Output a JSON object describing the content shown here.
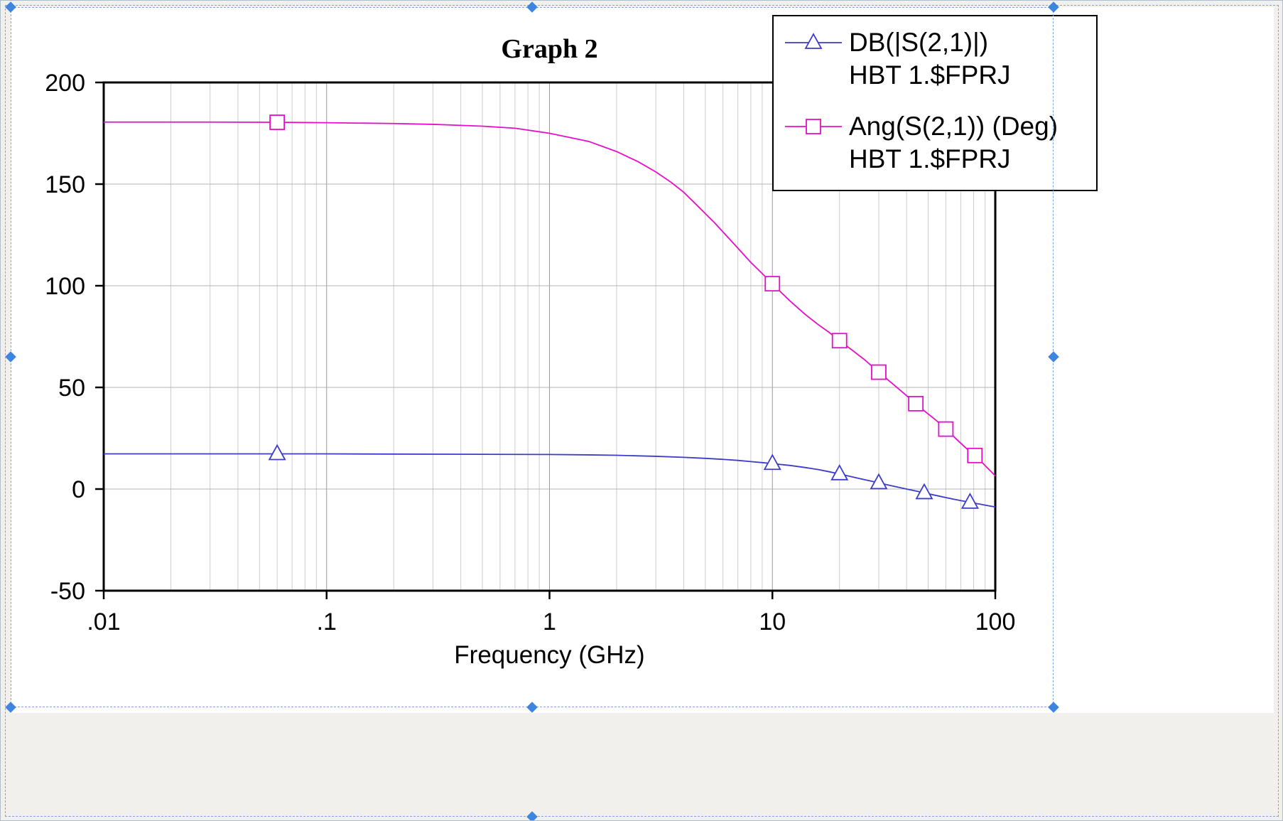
{
  "window": {
    "page_background": "#f1f0ed",
    "graph_background": "#ffffff"
  },
  "selection": {
    "handle_color": "#3d85e0",
    "outline_color": "#7aa7dd"
  },
  "chart_data": {
    "type": "line",
    "title": "Graph 2",
    "xlabel": "Frequency (GHz)",
    "x_scale": "log",
    "xlim": [
      0.01,
      100
    ],
    "xticks": [
      {
        "value": 0.01,
        "label": ".01"
      },
      {
        "value": 0.1,
        "label": ".1"
      },
      {
        "value": 1,
        "label": "1"
      },
      {
        "value": 10,
        "label": "10"
      },
      {
        "value": 100,
        "label": "100"
      }
    ],
    "ylim": [
      -50,
      200
    ],
    "yticks": [
      -50,
      0,
      50,
      100,
      150,
      200
    ],
    "grid": true,
    "grid_minor_color": "#cccccc",
    "grid_major_color": "#9a9a9a",
    "grid_horizontal_color": "#b3b3b3",
    "frame_color": "#000000",
    "legend_position": "top-right",
    "series": [
      {
        "name": "DB(|S(2,1)|)",
        "sublabel": "HBT 1.$FPRJ",
        "color": "#3c3cc8",
        "marker": "triangle",
        "points": [
          [
            0.01,
            17.3
          ],
          [
            0.02,
            17.3
          ],
          [
            0.05,
            17.3
          ],
          [
            0.1,
            17.3
          ],
          [
            0.2,
            17.2
          ],
          [
            0.5,
            17.1
          ],
          [
            1,
            17.0
          ],
          [
            1.5,
            16.8
          ],
          [
            2,
            16.6
          ],
          [
            3,
            16.1
          ],
          [
            4,
            15.6
          ],
          [
            5,
            15.1
          ],
          [
            6,
            14.6
          ],
          [
            7,
            14.1
          ],
          [
            8,
            13.5
          ],
          [
            9,
            13.0
          ],
          [
            10,
            12.5
          ],
          [
            12,
            11.6
          ],
          [
            14,
            10.6
          ],
          [
            16,
            9.6
          ],
          [
            18,
            8.5
          ],
          [
            20,
            7.4
          ],
          [
            22,
            6.4
          ],
          [
            25,
            5.0
          ],
          [
            28,
            3.8
          ],
          [
            30,
            3.0
          ],
          [
            33,
            2.0
          ],
          [
            36,
            1.1
          ],
          [
            40,
            0.0
          ],
          [
            45,
            -1.2
          ],
          [
            50,
            -2.3
          ],
          [
            55,
            -3.3
          ],
          [
            60,
            -4.2
          ],
          [
            65,
            -5.0
          ],
          [
            70,
            -5.7
          ],
          [
            75,
            -6.3
          ],
          [
            80,
            -6.9
          ],
          [
            85,
            -7.4
          ],
          [
            90,
            -7.9
          ],
          [
            95,
            -8.4
          ],
          [
            100,
            -8.8
          ]
        ],
        "marker_points": [
          [
            0.06,
            17.3
          ],
          [
            10,
            12.5
          ],
          [
            20,
            7.4
          ],
          [
            30,
            3.0
          ],
          [
            48,
            -1.9
          ],
          [
            77,
            -6.6
          ]
        ]
      },
      {
        "name": "Ang(S(2,1)) (Deg)",
        "sublabel": "HBT 1.$FPRJ",
        "color": "#e60ec8",
        "marker": "square",
        "points": [
          [
            0.01,
            180.5
          ],
          [
            0.03,
            180.5
          ],
          [
            0.06,
            180.4
          ],
          [
            0.1,
            180.2
          ],
          [
            0.2,
            179.8
          ],
          [
            0.3,
            179.4
          ],
          [
            0.5,
            178.5
          ],
          [
            0.7,
            177.5
          ],
          [
            1,
            175.0
          ],
          [
            1.5,
            171.0
          ],
          [
            2,
            166.0
          ],
          [
            2.5,
            161.0
          ],
          [
            3,
            156.0
          ],
          [
            3.5,
            151.0
          ],
          [
            4,
            146.0
          ],
          [
            4.5,
            140.5
          ],
          [
            5,
            135.5
          ],
          [
            5.5,
            131.0
          ],
          [
            6,
            126.5
          ],
          [
            7,
            118.5
          ],
          [
            8,
            111.5
          ],
          [
            9,
            106.0
          ],
          [
            10,
            101.0
          ],
          [
            11,
            96.5
          ],
          [
            12,
            92.5
          ],
          [
            14,
            86.0
          ],
          [
            16,
            81.0
          ],
          [
            18,
            77.0
          ],
          [
            20,
            73.0
          ],
          [
            23,
            68.0
          ],
          [
            26,
            63.5
          ],
          [
            30,
            57.5
          ],
          [
            34,
            52.5
          ],
          [
            38,
            48.0
          ],
          [
            43,
            43.0
          ],
          [
            48,
            38.5
          ],
          [
            54,
            34.0
          ],
          [
            60,
            29.5
          ],
          [
            67,
            24.5
          ],
          [
            75,
            19.5
          ],
          [
            83,
            15.5
          ],
          [
            92,
            10.5
          ],
          [
            100,
            6.5
          ]
        ],
        "marker_points": [
          [
            0.06,
            180.4
          ],
          [
            10,
            101.0
          ],
          [
            20,
            73.0
          ],
          [
            30,
            57.5
          ],
          [
            44,
            42.0
          ],
          [
            60,
            29.5
          ],
          [
            81,
            16.5
          ]
        ]
      }
    ]
  }
}
